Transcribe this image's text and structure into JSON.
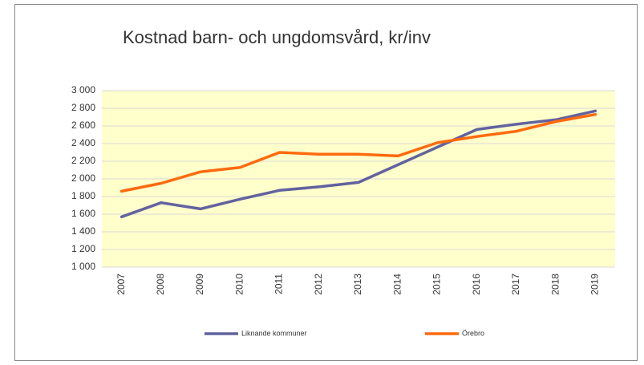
{
  "chart_data": {
    "type": "line",
    "title": "Kostnad barn- och ungdomsvård, kr/inv",
    "categories": [
      "2007",
      "2008",
      "2009",
      "2010",
      "2011",
      "2012",
      "2013",
      "2014",
      "2015",
      "2016",
      "2017",
      "2018",
      "2019"
    ],
    "series": [
      {
        "name": "Liknande kommuner",
        "color": "#62629f",
        "values": [
          1570,
          1730,
          1660,
          1770,
          1870,
          1910,
          1960,
          2160,
          2360,
          2560,
          2620,
          2670,
          2770
        ]
      },
      {
        "name": "Örebro",
        "color": "#ff6a0d",
        "values": [
          1860,
          1950,
          2080,
          2130,
          2300,
          2280,
          2280,
          2260,
          2410,
          2480,
          2540,
          2650,
          2730
        ]
      }
    ],
    "ylim": [
      1000,
      3000
    ],
    "yticks": [
      {
        "value": 1000,
        "label": "1 000"
      },
      {
        "value": 1200,
        "label": "1 200"
      },
      {
        "value": 1400,
        "label": "1 400"
      },
      {
        "value": 1600,
        "label": "1 600"
      },
      {
        "value": 1800,
        "label": "1 800"
      },
      {
        "value": 2000,
        "label": "2 000"
      },
      {
        "value": 2200,
        "label": "2 200"
      },
      {
        "value": 2400,
        "label": "2 400"
      },
      {
        "value": 2600,
        "label": "2 600"
      },
      {
        "value": 2800,
        "label": "2 800"
      },
      {
        "value": 3000,
        "label": "3 000"
      }
    ],
    "grid": true,
    "legend": "bottom",
    "plot_background": "#ffffcc"
  }
}
